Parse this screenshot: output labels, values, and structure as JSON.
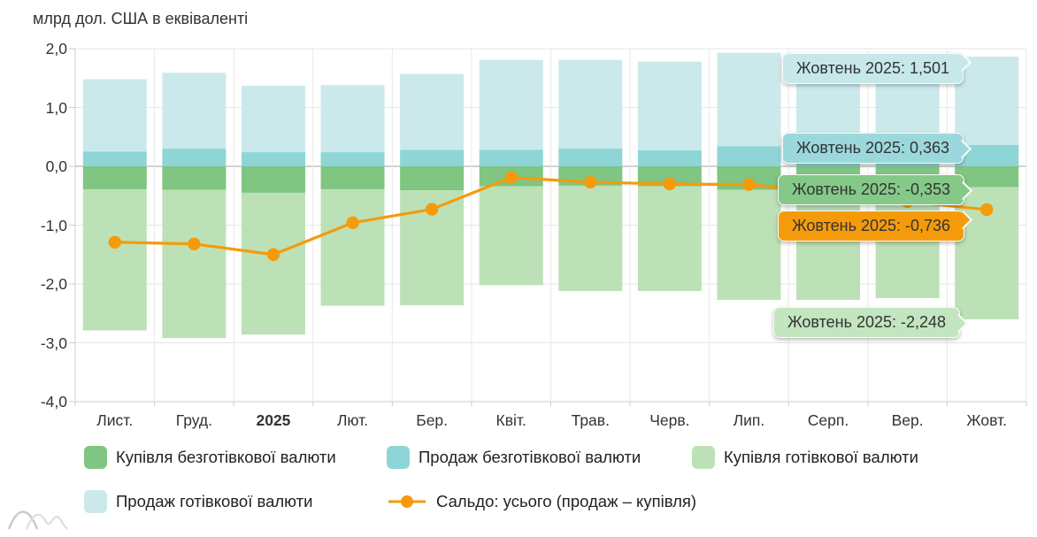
{
  "title": "млрд дол. США в еквіваленті",
  "chart_data": {
    "type": "bar",
    "stacked": true,
    "title": "млрд дол. США в еквіваленті",
    "categories": [
      "Лист.",
      "Груд.",
      "2025",
      "Лют.",
      "Бер.",
      "Квіт.",
      "Трав.",
      "Черв.",
      "Лип.",
      "Серп.",
      "Вер.",
      "Жовт."
    ],
    "bold_category": "2025",
    "y_axis": {
      "ticks": [
        "2,0",
        "1,0",
        "0,0",
        "-1,0",
        "-2,0",
        "-3,0",
        "-4,0"
      ],
      "values": [
        2,
        1,
        0,
        -1,
        -2,
        -3,
        -4
      ],
      "min": -4,
      "max": 2,
      "grid": true
    },
    "series": [
      {
        "id": "noncash_buy",
        "name": "Купівля безготівкової валюти",
        "type": "bar",
        "color": "#80c581",
        "values": [
          -0.39,
          -0.4,
          -0.45,
          -0.39,
          -0.41,
          -0.34,
          -0.33,
          -0.34,
          -0.4,
          -0.4,
          -0.4,
          -0.353
        ]
      },
      {
        "id": "noncash_sell",
        "name": "Продаж безготівкової валюти",
        "type": "bar",
        "color": "#8ed5d7",
        "values": [
          0.25,
          0.3,
          0.24,
          0.24,
          0.28,
          0.28,
          0.3,
          0.27,
          0.34,
          0.3,
          0.32,
          0.363
        ]
      },
      {
        "id": "cash_buy",
        "name": "Купівля готівкової валюти",
        "type": "bar",
        "color": "#bce1b6",
        "values": [
          -2.4,
          -2.52,
          -2.41,
          -1.98,
          -1.95,
          -1.68,
          -1.79,
          -1.78,
          -1.87,
          -1.87,
          -1.84,
          -2.248
        ]
      },
      {
        "id": "cash_sell",
        "name": "Продаж готівкової валюти",
        "type": "bar",
        "color": "#cbe9eb",
        "values": [
          1.23,
          1.29,
          1.13,
          1.14,
          1.29,
          1.53,
          1.51,
          1.51,
          1.59,
          1.52,
          1.32,
          1.501
        ]
      },
      {
        "id": "saldo",
        "name": "Сальдо: усього (продаж – купівля)",
        "type": "line",
        "color": "#f59b0b",
        "values": [
          -1.29,
          -1.32,
          -1.5,
          -0.96,
          -0.73,
          -0.19,
          -0.27,
          -0.3,
          -0.31,
          -0.45,
          -0.6,
          -0.736
        ]
      }
    ],
    "tooltips": [
      {
        "label": "Жовтень 2025: 1,501",
        "series": "cash_sell",
        "bg": "#c6e8eb"
      },
      {
        "label": "Жовтень 2025: 0,363",
        "series": "noncash_sell",
        "bg": "#9bd8db"
      },
      {
        "label": "Жовтень 2025: -0,353",
        "series": "noncash_buy",
        "bg": "#85c988"
      },
      {
        "label": "Жовтень 2025: -0,736",
        "series": "saldo",
        "bg": "#f59b0b"
      },
      {
        "label": "Жовтень 2025: -2,248",
        "series": "cash_buy",
        "bg": "#c3e5bf"
      }
    ],
    "legend_position": "bottom"
  },
  "legend": {
    "items": [
      {
        "label": "Купівля безготівкової валюти",
        "color": "#80c581",
        "icon": "swatch"
      },
      {
        "label": "Продаж безготівкової валюти",
        "color": "#8ed5d7",
        "icon": "swatch"
      },
      {
        "label": "Купівля готівкової валюти",
        "color": "#bce1b6",
        "icon": "swatch"
      },
      {
        "label": "Продаж готівкової валюти",
        "color": "#cbe9eb",
        "icon": "swatch"
      },
      {
        "label": "Сальдо: усього (продаж – купівля)",
        "color": "#f59b0b",
        "icon": "line-marker"
      }
    ]
  },
  "colors": {
    "grid": "#e6e6e6",
    "axis": "#cccccc",
    "zero_line": "#a6a6a6",
    "text": "#333333",
    "accent_orange": "#f59b0b",
    "watermark": "#c9c9c9"
  }
}
